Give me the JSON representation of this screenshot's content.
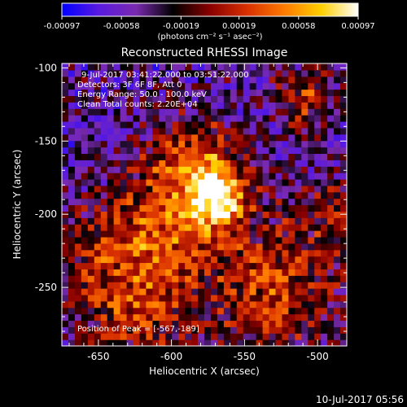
{
  "colorbar": {
    "tick_labels": [
      "-0.00097",
      "-0.00058",
      "-0.00019",
      "0.00019",
      "0.00058",
      "0.00097"
    ],
    "unit_label": "(photons cm⁻² s⁻¹ asec⁻²)",
    "range": [
      -0.00097,
      0.00097
    ],
    "colormap": [
      "#0000ff",
      "#5a1ae0",
      "#7a2ab0",
      "#000000",
      "#8a0000",
      "#d83000",
      "#ff7a00",
      "#ffd000",
      "#ffffff"
    ]
  },
  "chart_data": {
    "type": "heatmap",
    "title": "Reconstructed RHESSI Image",
    "xlabel": "Heliocentric X (arcsec)",
    "ylabel": "Heliocentric Y (arcsec)",
    "xlim": [
      -675,
      -480
    ],
    "ylim": [
      -290,
      -97
    ],
    "x_ticks": [
      -650,
      -600,
      -550,
      -500
    ],
    "y_ticks": [
      -100,
      -150,
      -200,
      -250
    ],
    "x_tick_labels": [
      "-650",
      "-600",
      "-550",
      "-500"
    ],
    "y_tick_labels": [
      "-100",
      "-150",
      "-200",
      "-250"
    ],
    "peak": [
      -567,
      -189
    ],
    "annotations": [
      "9-Jul-2017 03:41:22.000 to 03:51:22.000",
      "Detectors: 3F 6F 8F, Att 0",
      "Energy Range: 50.0 - 100.0 keV",
      "Clean     Total counts: 2.20E+04",
      "Position of Peak = [-567,-189]"
    ],
    "sources": [
      {
        "x": -567,
        "y": -189,
        "amp": 1.0,
        "sigma": 14
      },
      {
        "x": -585,
        "y": -165,
        "amp": 0.75,
        "sigma": 20
      },
      {
        "x": -600,
        "y": -210,
        "amp": 0.55,
        "sigma": 28
      },
      {
        "x": -640,
        "y": -235,
        "amp": 0.45,
        "sigma": 30
      },
      {
        "x": -530,
        "y": -255,
        "amp": 0.6,
        "sigma": 30
      },
      {
        "x": -510,
        "y": -120,
        "amp": 0.55,
        "sigma": 14
      },
      {
        "x": -620,
        "y": -275,
        "amp": 0.35,
        "sigma": 25
      },
      {
        "x": -495,
        "y": -200,
        "amp": 0.3,
        "sigma": 20
      }
    ]
  },
  "footer": {
    "timestamp": "10-Jul-2017 05:56"
  }
}
